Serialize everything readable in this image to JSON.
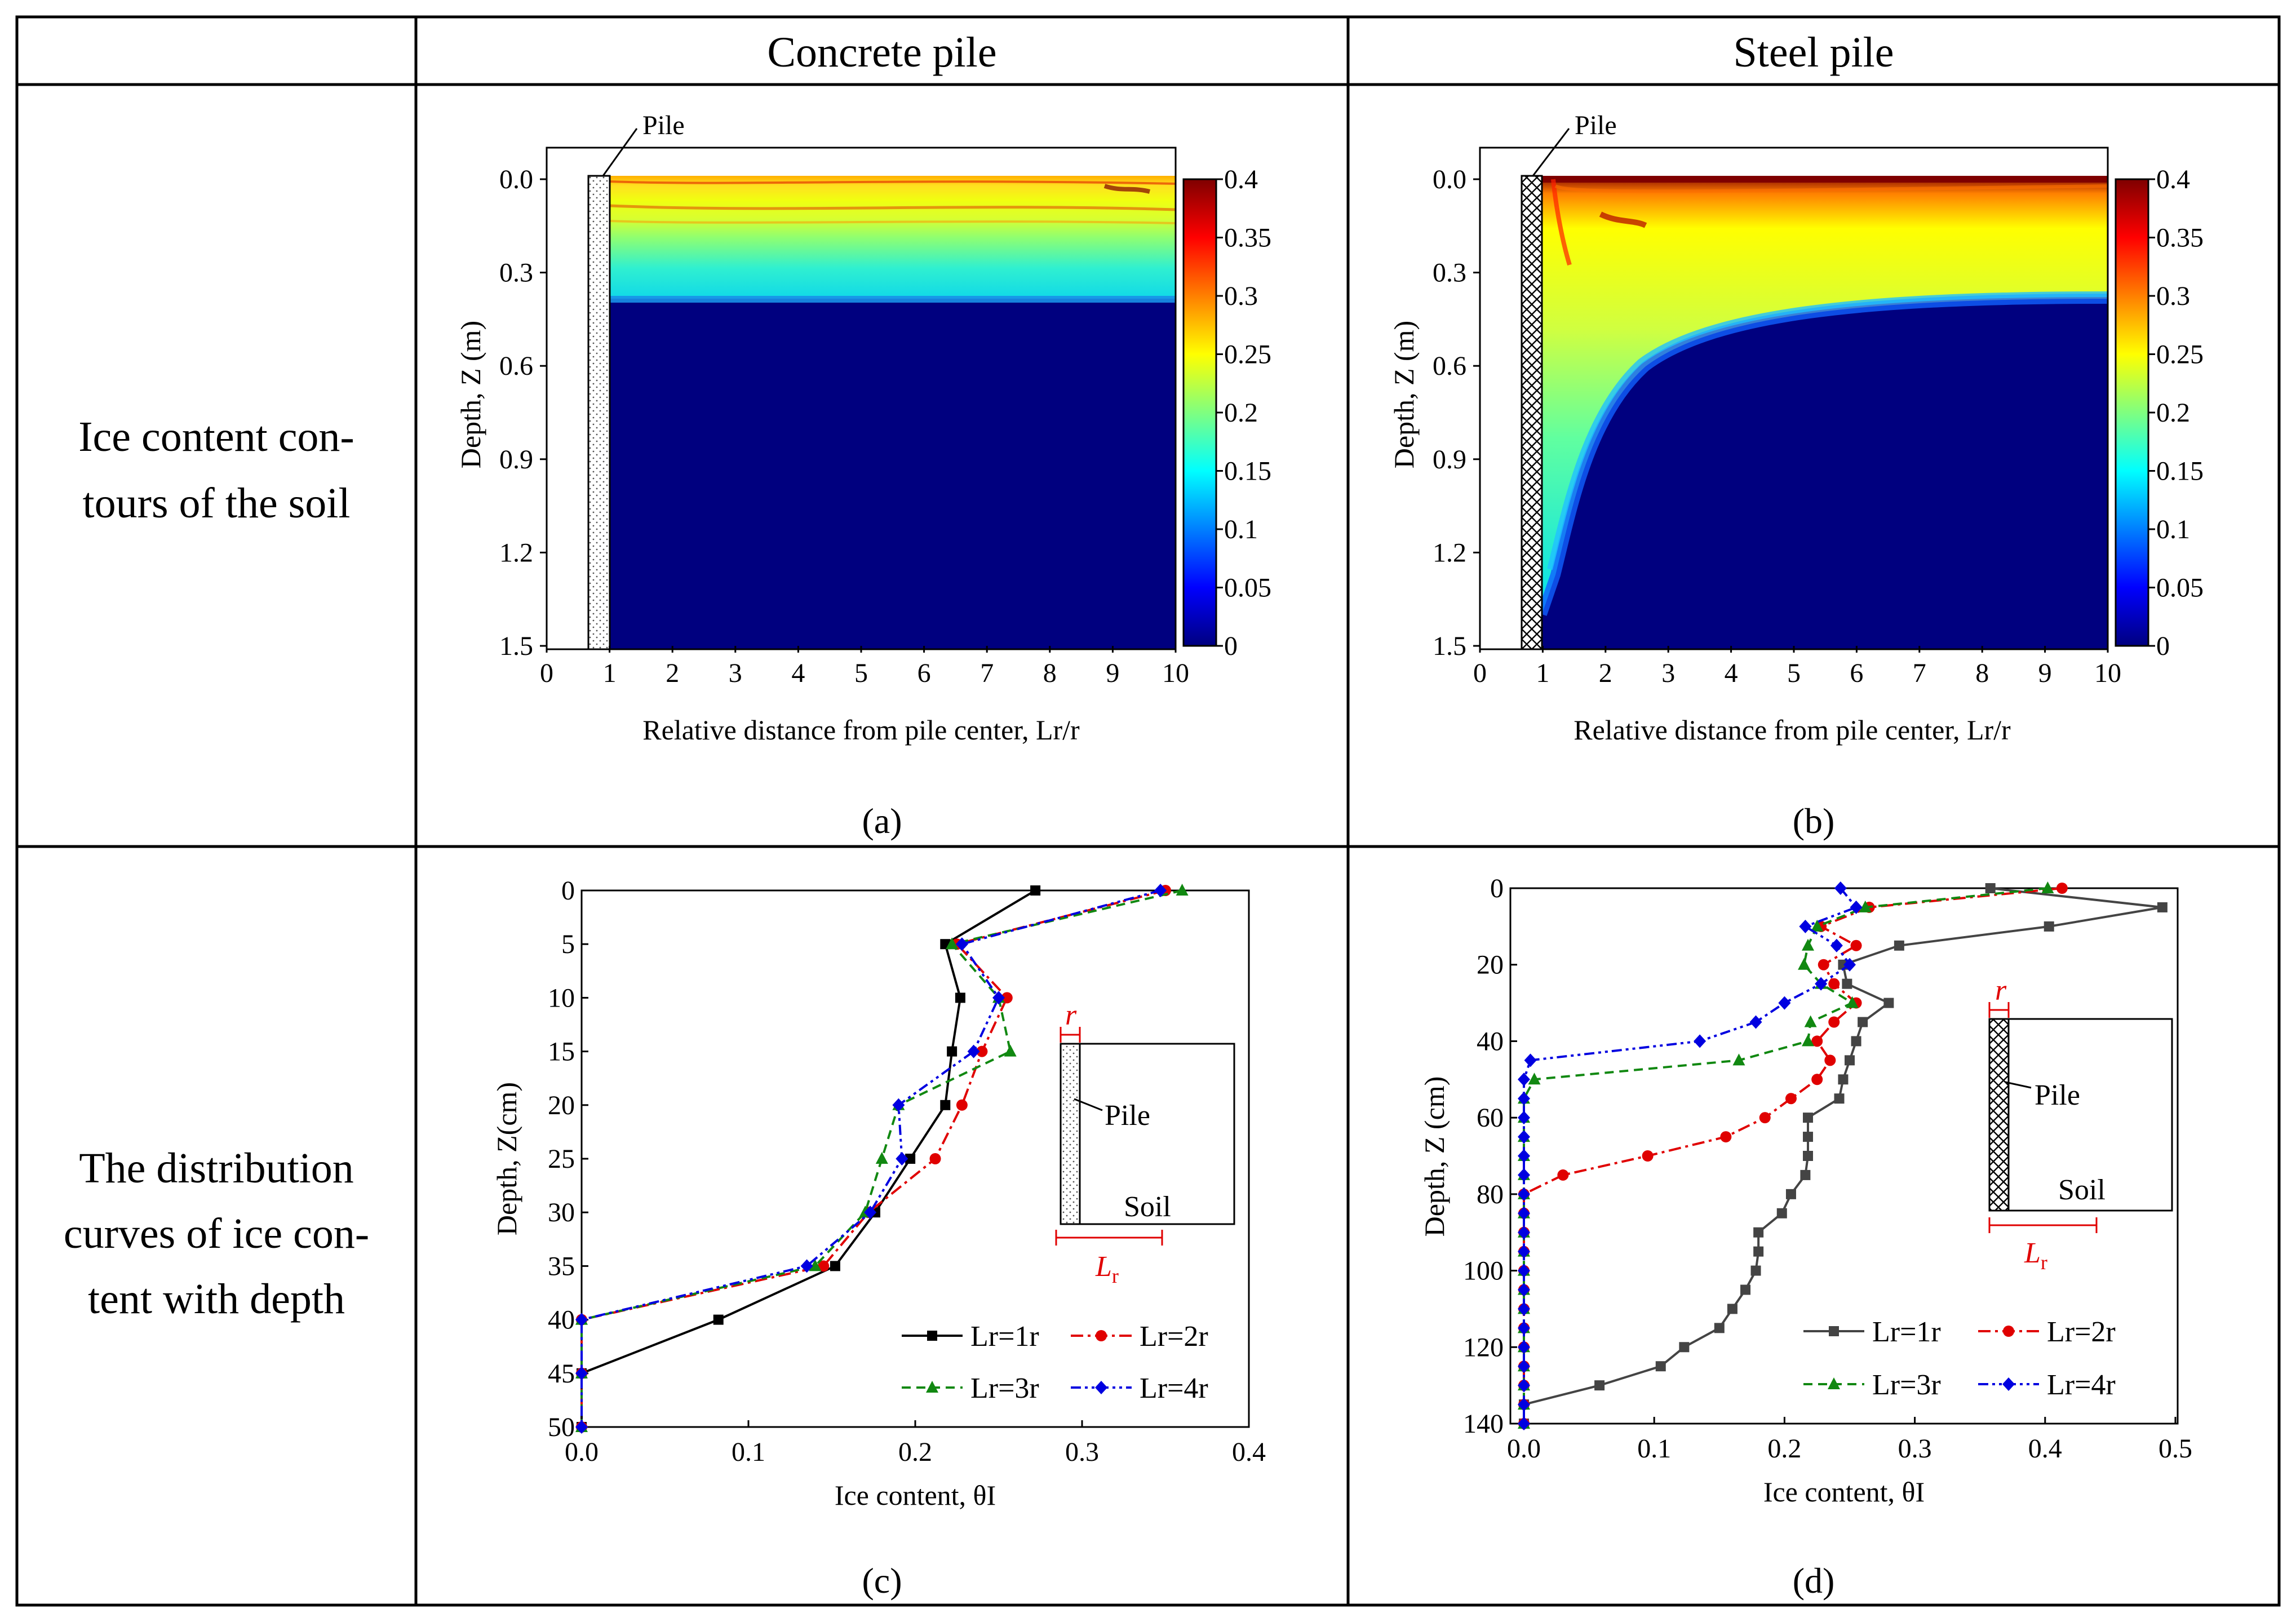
{
  "table": {
    "col_headers": [
      "Concrete pile",
      "Steel pile"
    ],
    "row_labels": [
      [
        "Ice content con-",
        "tours of the soil"
      ],
      [
        "The distribution",
        "curves of ice con-",
        "tent with depth"
      ]
    ]
  },
  "chart_data": [
    {
      "panel": "(a)",
      "type": "heatmap",
      "xlabel": "Relative distance from pile center, Lr/r",
      "ylabel": "Depth, Z (m)",
      "x_ticks": [
        "0",
        "1",
        "2",
        "3",
        "4",
        "5",
        "6",
        "7",
        "8",
        "9",
        "10"
      ],
      "y_ticks": [
        "0.0",
        "0.3",
        "0.6",
        "0.9",
        "1.2",
        "1.5"
      ],
      "xlim": [
        0,
        10
      ],
      "ylim": [
        0,
        1.5
      ],
      "colorbar_ticks": [
        "0.4",
        "0.35",
        "0.3",
        "0.25",
        "0.2",
        "0.15",
        "0.1",
        "0.05",
        "0"
      ],
      "colorbar_range": [
        0,
        0.4
      ],
      "pile_label": "Pile",
      "frozen_front_depth_m": 0.38
    },
    {
      "panel": "(b)",
      "type": "heatmap",
      "xlabel": "Relative distance from pile center, Lr/r",
      "ylabel": "Depth, Z (m)",
      "x_ticks": [
        "0",
        "1",
        "2",
        "3",
        "4",
        "5",
        "6",
        "7",
        "8",
        "9",
        "10"
      ],
      "y_ticks": [
        "0.0",
        "0.3",
        "0.6",
        "0.9",
        "1.2",
        "1.5"
      ],
      "xlim": [
        0,
        10
      ],
      "ylim": [
        0,
        1.5
      ],
      "colorbar_ticks": [
        "0.4",
        "0.35",
        "0.3",
        "0.25",
        "0.2",
        "0.15",
        "0.1",
        "0.05",
        "0"
      ],
      "colorbar_range": [
        0,
        0.4
      ],
      "pile_label": "Pile",
      "frozen_front_depth_far_m": 0.38,
      "frozen_front_depth_at_pile_m": 1.35
    },
    {
      "panel": "(c)",
      "type": "line",
      "xlabel": "Ice content, θI",
      "ylabel": "Depth, Z(cm)",
      "xlim": [
        0,
        0.4
      ],
      "ylim": [
        0,
        50
      ],
      "x_ticks": [
        "0.0",
        "0.1",
        "0.2",
        "0.3",
        "0.4"
      ],
      "y_ticks": [
        "0",
        "5",
        "10",
        "15",
        "20",
        "25",
        "30",
        "35",
        "40",
        "45",
        "50"
      ],
      "depth": [
        0,
        5,
        10,
        15,
        20,
        25,
        30,
        35,
        40,
        45,
        50
      ],
      "series": [
        {
          "name": "Lr=1r",
          "color": "#000000",
          "dash": "",
          "marker": "square",
          "values": [
            0.272,
            0.218,
            0.227,
            0.222,
            0.218,
            0.197,
            0.176,
            0.152,
            0.082,
            0.0,
            0.0
          ]
        },
        {
          "name": "Lr=2r",
          "color": "#e00000",
          "dash": "22,8,5,8",
          "marker": "circle",
          "values": [
            0.35,
            0.225,
            0.255,
            0.24,
            0.228,
            0.212,
            0.172,
            0.145,
            0.0,
            0.0,
            0.0
          ]
        },
        {
          "name": "Lr=3r",
          "color": "#118811",
          "dash": "16,10",
          "marker": "triangle",
          "values": [
            0.36,
            0.222,
            0.25,
            0.257,
            0.19,
            0.18,
            0.17,
            0.14,
            0.0,
            0.0,
            0.0
          ]
        },
        {
          "name": "Lr=4r",
          "color": "#0000e0",
          "dash": "18,7,5,7,5,7",
          "marker": "diamond",
          "values": [
            0.347,
            0.228,
            0.25,
            0.235,
            0.19,
            0.192,
            0.173,
            0.135,
            0.0,
            0.0,
            0.0
          ]
        }
      ],
      "inset": {
        "pile": "Pile",
        "soil": "Soil",
        "r": "r",
        "lr_main": "L",
        "lr_sub": "r"
      }
    },
    {
      "panel": "(d)",
      "type": "line",
      "xlabel": "Ice content, θI",
      "ylabel": "Depth, Z (cm)",
      "xlim": [
        0,
        0.5
      ],
      "ylim": [
        0,
        140
      ],
      "x_ticks": [
        "0.0",
        "0.1",
        "0.2",
        "0.3",
        "0.4",
        "0.5"
      ],
      "y_ticks": [
        "0",
        "20",
        "40",
        "60",
        "80",
        "100",
        "120",
        "140"
      ],
      "series": [
        {
          "name": "Lr=1r",
          "color": "#444444",
          "dash": "",
          "marker": "square",
          "depth": [
            0,
            5,
            10,
            15,
            20,
            25,
            30,
            35,
            40,
            45,
            50,
            55,
            60,
            65,
            70,
            75,
            80,
            85,
            90,
            95,
            100,
            105,
            110,
            115,
            120,
            125,
            130,
            135,
            140
          ],
          "values": [
            0.358,
            0.49,
            0.403,
            0.288,
            0.245,
            0.248,
            0.28,
            0.26,
            0.255,
            0.25,
            0.245,
            0.242,
            0.218,
            0.218,
            0.218,
            0.216,
            0.205,
            0.198,
            0.18,
            0.18,
            0.178,
            0.17,
            0.16,
            0.15,
            0.123,
            0.105,
            0.058,
            0.0,
            0.0
          ]
        },
        {
          "name": "Lr=2r",
          "color": "#e00000",
          "dash": "22,8,5,8",
          "marker": "circle",
          "depth": [
            0,
            5,
            10,
            15,
            20,
            25,
            30,
            35,
            40,
            45,
            50,
            55,
            60,
            65,
            70,
            75,
            80,
            85,
            90,
            95,
            100,
            105,
            110,
            115,
            120,
            125,
            130,
            135,
            140
          ],
          "values": [
            0.413,
            0.265,
            0.228,
            0.255,
            0.23,
            0.238,
            0.255,
            0.238,
            0.225,
            0.235,
            0.225,
            0.205,
            0.185,
            0.155,
            0.095,
            0.03,
            0.0,
            0.0,
            0.0,
            0.0,
            0.0,
            0.0,
            0.0,
            0.0,
            0.0,
            0.0,
            0.0,
            0.0,
            0.0
          ]
        },
        {
          "name": "Lr=3r",
          "color": "#118811",
          "dash": "16,10",
          "marker": "triangle",
          "depth": [
            0,
            5,
            10,
            15,
            20,
            25,
            30,
            35,
            40,
            45,
            50,
            55,
            60,
            65,
            70,
            75,
            80,
            85,
            90,
            95,
            100,
            105,
            110,
            115,
            120,
            125,
            130,
            135,
            140
          ],
          "values": [
            0.402,
            0.262,
            0.225,
            0.218,
            0.215,
            0.228,
            0.252,
            0.22,
            0.218,
            0.165,
            0.008,
            0.0,
            0.0,
            0.0,
            0.0,
            0.0,
            0.0,
            0.0,
            0.0,
            0.0,
            0.0,
            0.0,
            0.0,
            0.0,
            0.0,
            0.0,
            0.0,
            0.0,
            0.0
          ]
        },
        {
          "name": "Lr=4r",
          "color": "#0000e0",
          "dash": "18,7,5,7,5,7",
          "marker": "diamond",
          "depth": [
            0,
            5,
            10,
            15,
            20,
            25,
            30,
            35,
            40,
            45,
            50,
            55,
            60,
            65,
            70,
            75,
            80,
            85,
            90,
            95,
            100,
            105,
            110,
            115,
            120,
            125,
            130,
            135,
            140
          ],
          "values": [
            0.243,
            0.255,
            0.216,
            0.24,
            0.25,
            0.228,
            0.2,
            0.178,
            0.135,
            0.005,
            0.0,
            0.0,
            0.0,
            0.0,
            0.0,
            0.0,
            0.0,
            0.0,
            0.0,
            0.0,
            0.0,
            0.0,
            0.0,
            0.0,
            0.0,
            0.0,
            0.0,
            0.0,
            0.0
          ]
        }
      ],
      "inset": {
        "pile": "Pile",
        "soil": "Soil",
        "r": "r",
        "lr_main": "L",
        "lr_sub": "r"
      }
    }
  ]
}
